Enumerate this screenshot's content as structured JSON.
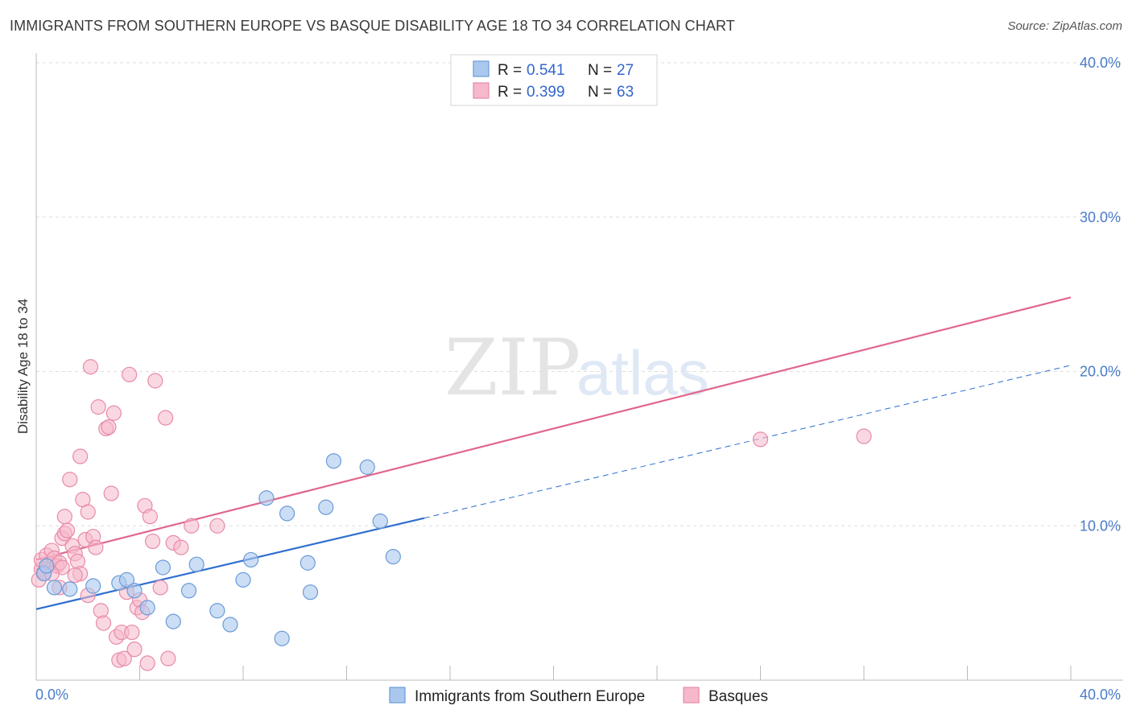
{
  "title": "IMMIGRANTS FROM SOUTHERN EUROPE VS BASQUE DISABILITY AGE 18 TO 34 CORRELATION CHART",
  "source": "Source: ZipAtlas.com",
  "watermark": {
    "zip": "ZIP",
    "atlas": "atlas"
  },
  "colors": {
    "blue_fill": "#aac8ee",
    "blue_stroke": "#6a9bd8",
    "blue_line": "#2f6fce",
    "pink_fill": "#f6b8cb",
    "pink_stroke": "#e88aa8",
    "pink_line": "#e0668d",
    "tick": "#4a7cc9",
    "grid": "#dddddd"
  },
  "legend": {
    "rows": [
      {
        "r_label": "R =",
        "r_value": "0.541",
        "n_label": "N =",
        "n_value": "27"
      },
      {
        "r_label": "R =",
        "r_value": "0.399",
        "n_label": "N =",
        "n_value": "63"
      }
    ]
  },
  "chart_data": {
    "type": "scatter",
    "title": "IMMIGRANTS FROM SOUTHERN EUROPE VS BASQUE DISABILITY AGE 18 TO 34 CORRELATION CHART",
    "xlabel": "",
    "ylabel": "Disability Age 18 to 34",
    "xlim": [
      0,
      40
    ],
    "ylim": [
      0,
      40
    ],
    "x_tick_labels": [
      "0.0%",
      "40.0%"
    ],
    "y_ticks": [
      10,
      20,
      30,
      40
    ],
    "y_tick_labels": [
      "10.0%",
      "20.0%",
      "30.0%",
      "40.0%"
    ],
    "series": [
      {
        "name": "Immigrants from Southern Europe",
        "color": "#aac8ee",
        "trend": {
          "x0": 0,
          "y0": 4.6,
          "x1": 15,
          "y1": 10.5,
          "dashed_to_x": 40,
          "dashed_to_y": 20.4
        },
        "points": [
          [
            0.3,
            6.9
          ],
          [
            0.7,
            6.0
          ],
          [
            1.3,
            5.9
          ],
          [
            2.2,
            6.1
          ],
          [
            3.2,
            6.3
          ],
          [
            3.5,
            6.5
          ],
          [
            3.8,
            5.8
          ],
          [
            4.3,
            4.7
          ],
          [
            4.9,
            7.3
          ],
          [
            5.3,
            3.8
          ],
          [
            5.9,
            5.8
          ],
          [
            6.2,
            7.5
          ],
          [
            7.0,
            4.5
          ],
          [
            7.5,
            3.6
          ],
          [
            8.0,
            6.5
          ],
          [
            8.3,
            7.8
          ],
          [
            8.9,
            11.8
          ],
          [
            9.5,
            2.7
          ],
          [
            9.7,
            10.8
          ],
          [
            10.5,
            7.6
          ],
          [
            10.6,
            5.7
          ],
          [
            11.2,
            11.2
          ],
          [
            11.5,
            14.2
          ],
          [
            12.8,
            13.8
          ],
          [
            13.3,
            10.3
          ],
          [
            13.8,
            8.0
          ],
          [
            0.4,
            7.4
          ]
        ]
      },
      {
        "name": "Basques",
        "color": "#f6b8cb",
        "trend": {
          "x0": 0,
          "y0": 7.8,
          "x1": 40,
          "y1": 24.8
        },
        "points": [
          [
            0.1,
            6.5
          ],
          [
            0.2,
            7.2
          ],
          [
            0.2,
            7.8
          ],
          [
            0.3,
            7.0
          ],
          [
            0.4,
            8.1
          ],
          [
            0.5,
            7.5
          ],
          [
            0.6,
            8.4
          ],
          [
            0.7,
            7.9
          ],
          [
            0.8,
            7.4
          ],
          [
            0.9,
            7.6
          ],
          [
            1.0,
            9.2
          ],
          [
            1.1,
            10.6
          ],
          [
            1.1,
            9.5
          ],
          [
            1.2,
            9.7
          ],
          [
            1.3,
            13.0
          ],
          [
            1.4,
            8.7
          ],
          [
            1.5,
            8.2
          ],
          [
            1.6,
            7.7
          ],
          [
            1.7,
            14.5
          ],
          [
            1.7,
            6.9
          ],
          [
            1.8,
            11.7
          ],
          [
            1.9,
            9.1
          ],
          [
            2.0,
            10.9
          ],
          [
            2.1,
            20.3
          ],
          [
            2.2,
            9.3
          ],
          [
            2.3,
            8.6
          ],
          [
            2.4,
            17.7
          ],
          [
            2.5,
            4.5
          ],
          [
            2.6,
            3.7
          ],
          [
            2.7,
            16.3
          ],
          [
            2.8,
            16.4
          ],
          [
            2.9,
            12.1
          ],
          [
            3.0,
            17.3
          ],
          [
            3.1,
            2.8
          ],
          [
            3.2,
            1.3
          ],
          [
            3.3,
            3.1
          ],
          [
            3.4,
            1.4
          ],
          [
            3.5,
            5.7
          ],
          [
            3.6,
            19.8
          ],
          [
            3.7,
            3.1
          ],
          [
            3.8,
            2.0
          ],
          [
            3.9,
            4.7
          ],
          [
            4.0,
            5.2
          ],
          [
            4.1,
            4.4
          ],
          [
            4.2,
            11.3
          ],
          [
            4.3,
            1.1
          ],
          [
            4.4,
            10.6
          ],
          [
            4.5,
            9.0
          ],
          [
            4.6,
            19.4
          ],
          [
            4.8,
            6.0
          ],
          [
            5.0,
            17.0
          ],
          [
            5.1,
            1.4
          ],
          [
            5.3,
            8.9
          ],
          [
            5.6,
            8.6
          ],
          [
            6.0,
            10.0
          ],
          [
            7.0,
            10.0
          ],
          [
            1.0,
            7.3
          ],
          [
            0.6,
            6.9
          ],
          [
            28.0,
            15.6
          ],
          [
            32.0,
            15.8
          ],
          [
            2.0,
            5.5
          ],
          [
            1.5,
            6.8
          ],
          [
            0.9,
            6.0
          ]
        ]
      }
    ]
  },
  "bottom_legend": {
    "items": [
      {
        "label": "Immigrants from Southern Europe"
      },
      {
        "label": "Basques"
      }
    ]
  }
}
